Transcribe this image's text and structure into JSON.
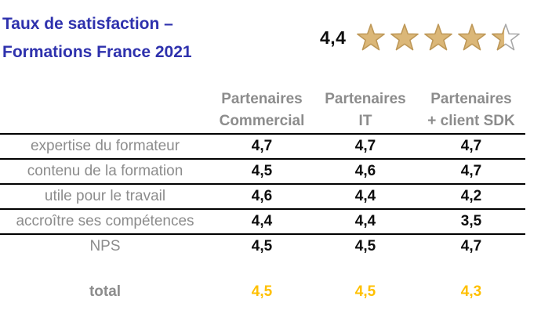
{
  "slide": {
    "title_line1": "Taux de satisfaction –",
    "title_line2": "Formations France 2021"
  },
  "rating": {
    "value_label": "4,4",
    "stars_total": 5,
    "stars_filled": 4.45
  },
  "chart_data": {
    "type": "table",
    "title": "Taux de satisfaction – Formations France 2021",
    "overall_rating": "4,4",
    "columns": [
      {
        "line1": "Partenaires",
        "line2": "Commercial"
      },
      {
        "line1": "Partenaires",
        "line2": "IT"
      },
      {
        "line1": "Partenaires",
        "line2": "+ client SDK"
      }
    ],
    "rows": [
      {
        "label": "expertise du formateur",
        "values": [
          "4,7",
          "4,7",
          "4,7"
        ]
      },
      {
        "label": "contenu de la formation",
        "values": [
          "4,5",
          "4,6",
          "4,7"
        ]
      },
      {
        "label": "utile pour le travail",
        "values": [
          "4,6",
          "4,4",
          "4,2"
        ]
      },
      {
        "label": "accroître ses compétences",
        "values": [
          "4,4",
          "4,4",
          "3,5"
        ]
      },
      {
        "label": "NPS",
        "values": [
          "4,5",
          "4,5",
          "4,7"
        ]
      }
    ],
    "total_row": {
      "label": "total",
      "values": [
        "4,5",
        "4,5",
        "4,3"
      ]
    }
  },
  "colors": {
    "title_blue": "#2E31AD",
    "text_gray": "#8C8C8C",
    "value_black": "#0D0D0D",
    "total_orange": "#FFC000",
    "rule_black": "#000000",
    "star_fill": "#DBB778",
    "star_stroke": "#BE9858",
    "star_empty_stroke": "#A8A8A8",
    "star_empty_fill": "#FFFFFF"
  }
}
